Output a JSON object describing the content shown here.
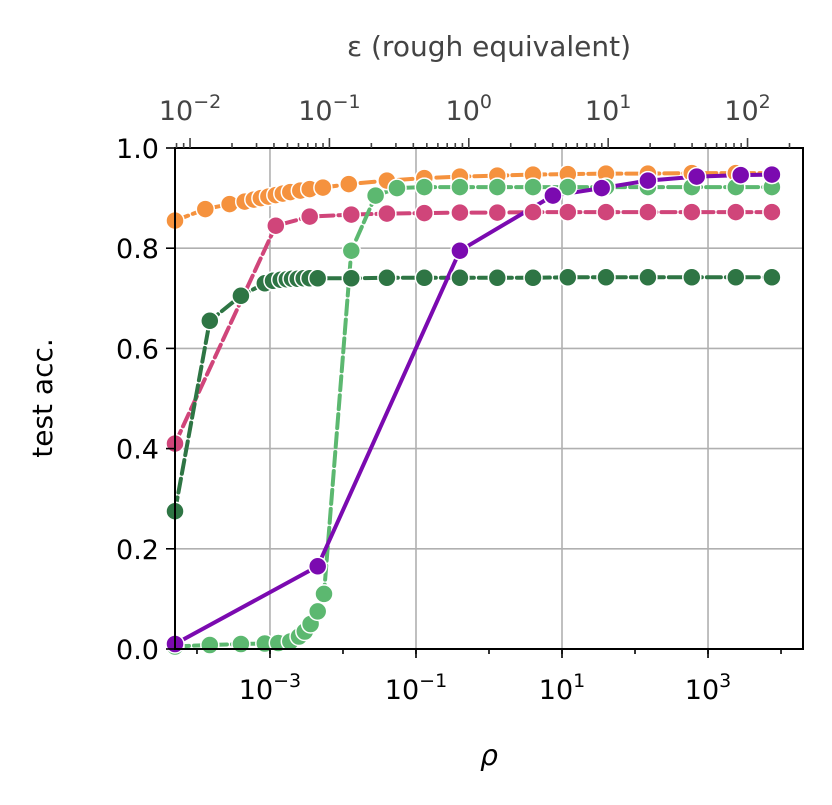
{
  "chart_data": {
    "type": "line",
    "xlabel": "ρ",
    "ylabel": "test acc.",
    "top_xlabel": "ε (rough equivalent)",
    "x_scale": "log",
    "xlim": [
      5e-05,
      20000
    ],
    "ylim": [
      0,
      1
    ],
    "grid": true,
    "x_ticks": [
      {
        "value": 0.001,
        "base": "10",
        "exp": "−3"
      },
      {
        "value": 0.1,
        "base": "10",
        "exp": "−1"
      },
      {
        "value": 10,
        "base": "10",
        "exp": "1"
      },
      {
        "value": 1000,
        "base": "10",
        "exp": "3"
      }
    ],
    "y_ticks": [
      {
        "value": 0.0,
        "label": "0.0"
      },
      {
        "value": 0.2,
        "label": "0.2"
      },
      {
        "value": 0.4,
        "label": "0.4"
      },
      {
        "value": 0.6,
        "label": "0.6"
      },
      {
        "value": 0.8,
        "label": "0.8"
      },
      {
        "value": 1.0,
        "label": "1.0"
      }
    ],
    "top_axis": {
      "xlim": [
        0.0078,
        250
      ],
      "ticks": [
        {
          "value": 0.01,
          "base": "10",
          "exp": "−2"
        },
        {
          "value": 0.1,
          "base": "10",
          "exp": "−1"
        },
        {
          "value": 1,
          "base": "10",
          "exp": "0"
        },
        {
          "value": 10,
          "base": "10",
          "exp": "1"
        },
        {
          "value": 100,
          "base": "10",
          "exp": "2"
        }
      ]
    },
    "series": [
      {
        "color": "#f5923e",
        "dash": "dashed",
        "x": [
          5e-05,
          0.00013,
          0.00028,
          0.00045,
          0.0006,
          0.00075,
          0.00095,
          0.0012,
          0.0015,
          0.0019,
          0.0026,
          0.0035,
          0.0053,
          0.012,
          0.04,
          0.13,
          0.4,
          1.3,
          4,
          12,
          40,
          150,
          600,
          2400,
          7500
        ],
        "y": [
          0.855,
          0.878,
          0.888,
          0.893,
          0.897,
          0.9,
          0.903,
          0.906,
          0.909,
          0.912,
          0.915,
          0.918,
          0.921,
          0.928,
          0.935,
          0.94,
          0.943,
          0.945,
          0.947,
          0.948,
          0.949,
          0.949,
          0.95,
          0.95,
          0.95
        ]
      },
      {
        "color": "#d0457a",
        "dash": "dashed",
        "x": [
          5e-05,
          0.0012,
          0.0035,
          0.013,
          0.04,
          0.13,
          0.4,
          1.3,
          4,
          12,
          40,
          150,
          600,
          2400,
          7500
        ],
        "y": [
          0.41,
          0.845,
          0.863,
          0.867,
          0.869,
          0.87,
          0.871,
          0.871,
          0.872,
          0.872,
          0.872,
          0.872,
          0.872,
          0.872,
          0.872
        ]
      },
      {
        "color": "#2e7544",
        "dash": "dashed",
        "x": [
          5e-05,
          0.00015,
          0.0004,
          0.00085,
          0.0011,
          0.0014,
          0.0017,
          0.002,
          0.0024,
          0.0029,
          0.0035,
          0.0045,
          0.013,
          0.04,
          0.13,
          0.4,
          1.3,
          4,
          12,
          40,
          150,
          600,
          2400,
          7500
        ],
        "y": [
          0.275,
          0.655,
          0.705,
          0.73,
          0.735,
          0.737,
          0.738,
          0.739,
          0.739,
          0.74,
          0.74,
          0.74,
          0.74,
          0.741,
          0.741,
          0.741,
          0.741,
          0.741,
          0.742,
          0.742,
          0.742,
          0.742,
          0.742,
          0.742
        ]
      },
      {
        "color": "#5cb870",
        "dash": "dashed",
        "x": [
          5e-05,
          0.00015,
          0.0004,
          0.00085,
          0.0013,
          0.0019,
          0.0025,
          0.003,
          0.0036,
          0.0045,
          0.0055,
          0.013,
          0.028,
          0.055,
          0.13,
          0.4,
          1.3,
          4,
          12,
          40,
          150,
          600,
          2400,
          7500
        ],
        "y": [
          0.005,
          0.008,
          0.01,
          0.011,
          0.012,
          0.015,
          0.025,
          0.035,
          0.05,
          0.075,
          0.11,
          0.795,
          0.905,
          0.92,
          0.922,
          0.922,
          0.922,
          0.922,
          0.922,
          0.922,
          0.922,
          0.922,
          0.922,
          0.922
        ]
      },
      {
        "color": "#7b0ab0",
        "dash": "solid",
        "x": [
          5e-05,
          0.0045,
          0.4,
          7.5,
          35,
          150,
          700,
          2800,
          7500
        ],
        "y": [
          0.01,
          0.165,
          0.795,
          0.905,
          0.92,
          0.935,
          0.943,
          0.946,
          0.947
        ]
      }
    ]
  }
}
